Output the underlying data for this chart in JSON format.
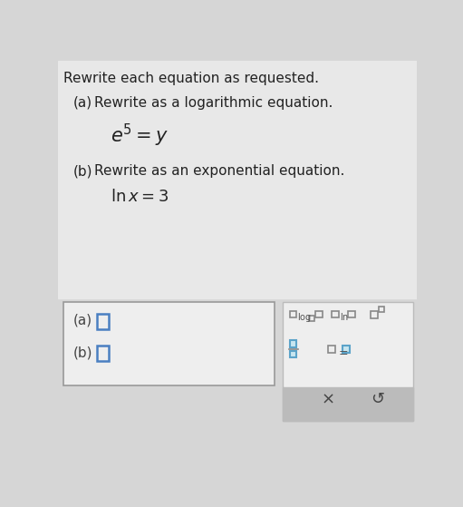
{
  "bg_color": "#d6d6d6",
  "top_bg": "#e8e8e8",
  "title": "Rewrite each equation as requested.",
  "part_a_label": "(a)",
  "part_a_instruction": "Rewrite as a logarithmic equation.",
  "part_b_label": "(b)",
  "part_b_instruction": "Rewrite as an exponential equation.",
  "x_symbol": "×",
  "undo_symbol": "↺",
  "box_edge": "#999999",
  "blue_edge": "#4a7fc1",
  "teal_edge": "#5ba3c9",
  "teal_fill": "#c8e6f0",
  "toolbar_bg": "#eeeeee",
  "toolbar_gray": "#bbbbbb",
  "text_dark": "#222222",
  "text_mid": "#444444",
  "text_light": "#555555"
}
